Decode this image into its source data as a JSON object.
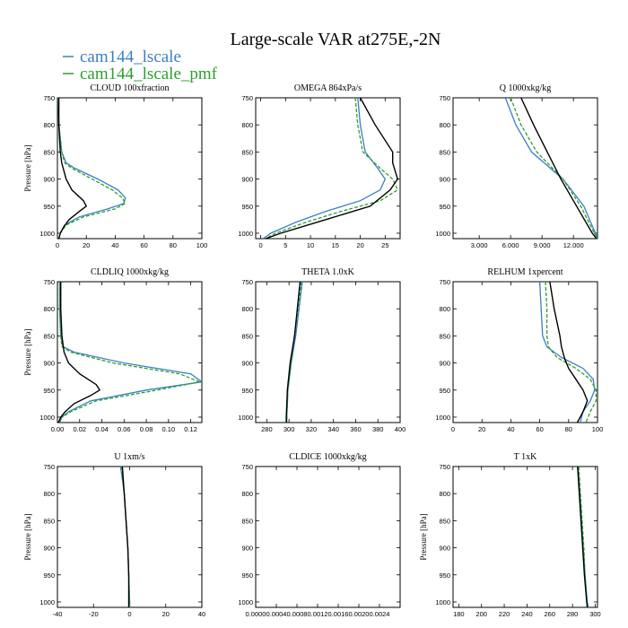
{
  "figure": {
    "title": "Large-scale VAR at275E,-2N",
    "legend": [
      {
        "name": "cam144_lscale",
        "color": "#3a7fc4",
        "dash": "solid"
      },
      {
        "name": "cam144_lscale_pmf",
        "color": "#2ca02c",
        "dash": "dashed"
      }
    ],
    "obs_color": "#000000"
  },
  "chart_data": [
    {
      "type": "line",
      "title": "CLOUD  100xfraction",
      "ylabel": "Pressure [hPa]",
      "xlim": [
        0,
        100
      ],
      "ylim": [
        1010,
        750
      ],
      "xticks": [
        0,
        20,
        40,
        60,
        80,
        100
      ],
      "xticklabels": [
        "0",
        "20",
        "40",
        "60",
        "80",
        "100"
      ],
      "yticks": [
        750,
        800,
        850,
        900,
        950,
        1000
      ],
      "series": [
        {
          "y": [
            750,
            800,
            850,
            870,
            880,
            900,
            920,
            935,
            945,
            955,
            970,
            985,
            1000,
            1010
          ],
          "x": [
            0.5,
            1,
            3,
            6,
            12,
            28,
            42,
            47,
            46,
            35,
            15,
            5,
            2,
            1
          ]
        },
        {
          "y": [
            750,
            800,
            850,
            870,
            880,
            900,
            920,
            935,
            945,
            955,
            970,
            985,
            1000,
            1010
          ],
          "x": [
            0.5,
            1,
            3,
            5,
            10,
            24,
            38,
            45,
            47,
            40,
            18,
            6,
            2,
            1
          ]
        },
        {
          "y": [
            750,
            800,
            850,
            870,
            900,
            920,
            940,
            950,
            960,
            975,
            990,
            1000,
            1010
          ],
          "x": [
            1,
            1,
            2,
            3,
            6,
            10,
            18,
            20,
            15,
            8,
            4,
            2,
            1
          ]
        }
      ]
    },
    {
      "type": "line",
      "title": "OMEGA  864xPa/s",
      "ylabel": "",
      "xlim": [
        -1,
        28
      ],
      "ylim": [
        1010,
        750
      ],
      "xticks": [
        0,
        5,
        10,
        15,
        20,
        25
      ],
      "xticklabels": [
        "0",
        "5",
        "10",
        "15",
        "20",
        "25"
      ],
      "yticks": [
        750,
        800,
        850,
        900,
        950,
        1000
      ],
      "series": [
        {
          "y": [
            750,
            800,
            850,
            880,
            900,
            920,
            940,
            960,
            980,
            1000,
            1010
          ],
          "x": [
            19.5,
            20,
            21,
            23.5,
            25,
            24,
            20,
            13,
            7,
            2,
            0.5
          ]
        },
        {
          "y": [
            750,
            800,
            850,
            880,
            900,
            920,
            940,
            960,
            980,
            1000,
            1010
          ],
          "x": [
            19,
            19.5,
            20.5,
            24,
            26.5,
            27.5,
            24,
            16,
            9,
            3,
            1
          ]
        },
        {
          "y": [
            750,
            800,
            850,
            870,
            900,
            920,
            950,
            975,
            1000,
            1010
          ],
          "x": [
            20,
            23,
            26.5,
            26.5,
            27.5,
            26,
            22,
            13,
            4,
            1
          ]
        }
      ]
    },
    {
      "type": "line",
      "title": "Q  1000xkg/kg",
      "ylabel": "",
      "xlim": [
        0.5,
        14.3
      ],
      "ylim": [
        1010,
        750
      ],
      "xticks": [
        3,
        6,
        9,
        12
      ],
      "xticklabels": [
        "3.000",
        "6.000",
        "9.000",
        "12.000"
      ],
      "yticks": [
        750,
        800,
        850,
        900,
        950,
        1000
      ],
      "series": [
        {
          "y": [
            750,
            800,
            850,
            900,
            950,
            1000,
            1010
          ],
          "x": [
            5.5,
            6.5,
            8,
            11,
            13,
            14.1,
            14.3
          ]
        },
        {
          "y": [
            750,
            800,
            850,
            900,
            950,
            1000,
            1010
          ],
          "x": [
            6,
            7,
            8.5,
            11,
            12.7,
            14,
            14.3
          ]
        },
        {
          "y": [
            750,
            800,
            850,
            900,
            950,
            1000,
            1010
          ],
          "x": [
            7,
            8.2,
            9.5,
            10.8,
            12.3,
            13.8,
            14.2
          ]
        }
      ]
    },
    {
      "type": "line",
      "title": "CLDLIQ  1000xkg/kg",
      "ylabel": "Pressure [hPa]",
      "xlim": [
        0,
        0.13
      ],
      "ylim": [
        1010,
        750
      ],
      "xticks": [
        0,
        0.02,
        0.04,
        0.06,
        0.08,
        0.1,
        0.12
      ],
      "xticklabels": [
        "0.00",
        "0.02",
        "0.04",
        "0.06",
        "0.08",
        "0.10",
        "0.12"
      ],
      "yticks": [
        750,
        800,
        850,
        900,
        950,
        1000
      ],
      "series": [
        {
          "y": [
            750,
            800,
            850,
            870,
            880,
            900,
            920,
            935,
            950,
            970,
            990,
            1000,
            1010
          ],
          "x": [
            0.002,
            0.002,
            0.003,
            0.005,
            0.015,
            0.06,
            0.12,
            0.13,
            0.08,
            0.03,
            0.01,
            0.004,
            0.002
          ]
        },
        {
          "y": [
            750,
            800,
            850,
            870,
            880,
            900,
            920,
            935,
            950,
            970,
            990,
            1000,
            1010
          ],
          "x": [
            0.002,
            0.002,
            0.003,
            0.004,
            0.012,
            0.05,
            0.11,
            0.128,
            0.09,
            0.035,
            0.012,
            0.004,
            0.002
          ]
        },
        {
          "y": [
            750,
            800,
            850,
            880,
            900,
            920,
            940,
            950,
            960,
            975,
            990,
            1000,
            1010
          ],
          "x": [
            0.003,
            0.003,
            0.004,
            0.006,
            0.01,
            0.02,
            0.035,
            0.038,
            0.03,
            0.015,
            0.007,
            0.003,
            0.001
          ]
        }
      ]
    },
    {
      "type": "line",
      "title": "THETA  1.0xK",
      "ylabel": "",
      "xlim": [
        270,
        400
      ],
      "ylim": [
        1010,
        750
      ],
      "xticks": [
        280,
        300,
        320,
        340,
        360,
        380,
        400
      ],
      "xticklabels": [
        "280",
        "300",
        "320",
        "340",
        "360",
        "380",
        "400"
      ],
      "yticks": [
        750,
        800,
        850,
        900,
        950,
        1000
      ],
      "series": [
        {
          "y": [
            750,
            800,
            850,
            900,
            950,
            1000,
            1010
          ],
          "x": [
            312,
            309,
            306,
            302,
            299,
            298,
            298
          ]
        },
        {
          "y": [
            750,
            800,
            850,
            900,
            950,
            1000,
            1010
          ],
          "x": [
            311,
            308,
            305,
            302,
            299,
            298,
            298
          ]
        },
        {
          "y": [
            750,
            800,
            850,
            900,
            950,
            1000,
            1010
          ],
          "x": [
            310,
            307.5,
            305,
            301,
            298.5,
            297.5,
            297.5
          ]
        }
      ]
    },
    {
      "type": "line",
      "title": "RELHUM  1xpercent",
      "ylabel": "",
      "xlim": [
        0,
        100
      ],
      "ylim": [
        1010,
        750
      ],
      "xticks": [
        0,
        20,
        40,
        60,
        80,
        100
      ],
      "xticklabels": [
        "0",
        "20",
        "40",
        "60",
        "80",
        "100"
      ],
      "yticks": [
        750,
        800,
        850,
        900,
        950,
        1000
      ],
      "series": [
        {
          "y": [
            750,
            800,
            850,
            870,
            890,
            910,
            930,
            950,
            970,
            990,
            1010
          ],
          "x": [
            60,
            61,
            62,
            65,
            75,
            90,
            97,
            98,
            95,
            90,
            88
          ]
        },
        {
          "y": [
            750,
            800,
            850,
            870,
            890,
            910,
            930,
            950,
            970,
            990,
            1010
          ],
          "x": [
            64,
            65,
            65,
            66,
            72,
            85,
            95,
            99,
            99,
            95,
            92
          ]
        },
        {
          "y": [
            750,
            800,
            850,
            870,
            890,
            910,
            930,
            950,
            970,
            990,
            1010
          ],
          "x": [
            67,
            70,
            74,
            75,
            77,
            80,
            85,
            90,
            93,
            90,
            86
          ]
        }
      ]
    },
    {
      "type": "line",
      "title": "U  1xm/s",
      "ylabel": "Pressure [hPa]",
      "xlim": [
        -40,
        40
      ],
      "ylim": [
        1010,
        750
      ],
      "xticks": [
        -40,
        -20,
        0,
        20,
        40
      ],
      "xticklabels": [
        "-40",
        "-20",
        "0",
        "20",
        "40"
      ],
      "yticks": [
        750,
        800,
        850,
        900,
        950,
        1000
      ],
      "series": [
        {
          "y": [
            750,
            800,
            850,
            900,
            950,
            1000,
            1010
          ],
          "x": [
            -5,
            -3,
            -2,
            -1,
            -0.5,
            0,
            0
          ]
        },
        {
          "y": [
            750,
            800,
            850,
            900,
            950,
            1000,
            1010
          ],
          "x": [
            -4.5,
            -3,
            -2,
            -1,
            -0.5,
            0,
            0
          ]
        },
        {
          "y": [
            750,
            800,
            850,
            900,
            950,
            1000,
            1010
          ],
          "x": [
            -4,
            -3,
            -2,
            -1,
            -0.5,
            -0.5,
            -0.5
          ]
        }
      ]
    },
    {
      "type": "line",
      "title": "CLDICE  1000xkg/kg",
      "ylabel": "",
      "xlim": [
        0,
        0.0028
      ],
      "ylim": [
        1010,
        750
      ],
      "xticks": [
        0,
        0.0004,
        0.0008,
        0.0012,
        0.0016,
        0.002,
        0.0024
      ],
      "xticklabels": [
        "0.0000",
        "0.0004",
        "0.0008",
        "0.0012",
        "0.0016",
        "0.0020",
        "0.0024"
      ],
      "yticks": [
        750,
        800,
        850,
        900,
        950,
        1000
      ],
      "series": []
    },
    {
      "type": "line",
      "title": "T  1xK",
      "ylabel": "Pressure [hPa]",
      "xlim": [
        175,
        302
      ],
      "ylim": [
        1010,
        750
      ],
      "xticks": [
        180,
        200,
        220,
        240,
        260,
        280,
        300
      ],
      "xticklabels": [
        "180",
        "200",
        "220",
        "240",
        "260",
        "280",
        "300"
      ],
      "yticks": [
        750,
        800,
        850,
        900,
        950,
        1000
      ],
      "series": [
        {
          "y": [
            750,
            800,
            850,
            900,
            950,
            1000,
            1010
          ],
          "x": [
            285,
            286.5,
            288,
            289.5,
            291,
            293,
            294
          ]
        },
        {
          "y": [
            750,
            800,
            850,
            900,
            950,
            1000,
            1010
          ],
          "x": [
            285.5,
            287,
            288.5,
            290,
            291,
            292.5,
            293
          ]
        },
        {
          "y": [
            750,
            800,
            850,
            900,
            950,
            1000,
            1010
          ],
          "x": [
            284.5,
            286,
            287.5,
            289,
            290.5,
            292.5,
            293
          ]
        }
      ]
    }
  ]
}
